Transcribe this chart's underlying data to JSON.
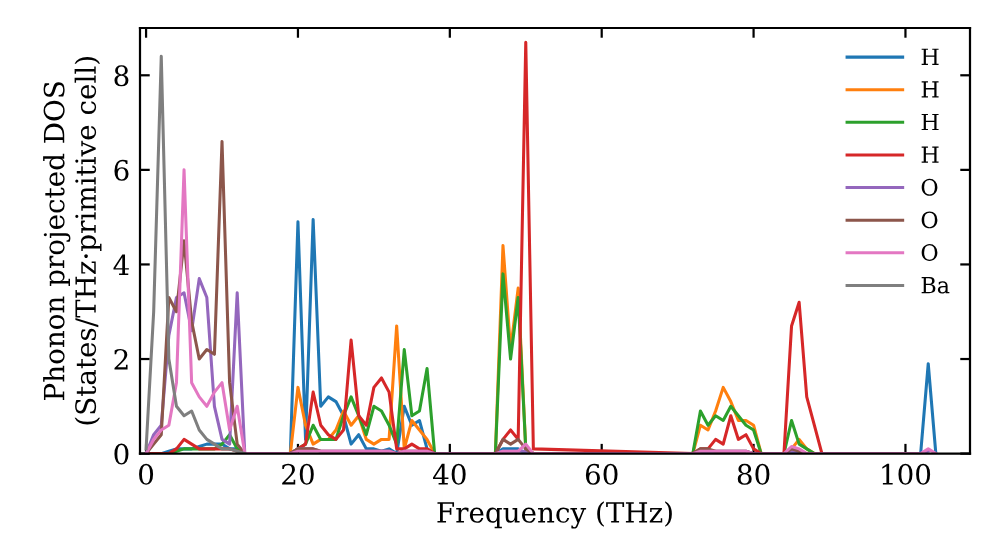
{
  "chart_data": {
    "type": "line",
    "xlabel": "Frequency (THz)",
    "ylabel": "Phonon projected DOS\n(States/THz·primitive cell)",
    "xlim": [
      -0.8,
      108.5
    ],
    "ylim": [
      0,
      9
    ],
    "xticks": [
      0,
      20,
      40,
      60,
      80,
      100
    ],
    "yticks": [
      0,
      2,
      4,
      6,
      8
    ],
    "grid": false,
    "legend": "top right",
    "marker": "none",
    "line_style": "solid",
    "x": [
      0,
      1,
      2,
      3,
      4,
      5,
      6,
      7,
      8,
      9,
      10,
      11,
      12,
      13,
      14,
      19,
      20,
      21,
      22,
      23,
      24,
      25,
      26,
      27,
      28,
      29,
      30,
      31,
      32,
      33,
      34,
      35,
      36,
      37,
      38,
      46,
      47,
      48,
      49,
      50,
      51,
      72,
      73,
      74,
      75,
      76,
      77,
      78,
      79,
      80,
      81,
      84,
      85,
      86,
      87,
      88,
      89,
      102,
      103,
      104
    ],
    "series": [
      {
        "name": "H",
        "color": "#1f77b4",
        "values": [
          0,
          0,
          0,
          0.05,
          0.1,
          0.1,
          0.1,
          0.15,
          0.2,
          0.2,
          0.2,
          0.1,
          0.1,
          0,
          0,
          0,
          4.9,
          0.3,
          4.95,
          1.0,
          1.2,
          1.1,
          0.8,
          0.2,
          0.4,
          0.1,
          0.1,
          0.05,
          0.1,
          0,
          1.0,
          0.6,
          0.7,
          0.1,
          0,
          0,
          0.1,
          0.1,
          0.1,
          0,
          0,
          0,
          0,
          0,
          0,
          0,
          0,
          0,
          0,
          0,
          0,
          0,
          0,
          0,
          0,
          0,
          0,
          0,
          1.9,
          0
        ]
      },
      {
        "name": "H",
        "color": "#ff7f0e",
        "values": [
          null,
          null,
          null,
          null,
          null,
          null,
          null,
          null,
          null,
          null,
          null,
          null,
          null,
          null,
          0,
          0,
          1.4,
          0.6,
          0.2,
          0.3,
          0.3,
          0.5,
          0.9,
          0.6,
          0.8,
          0.3,
          0.2,
          0.3,
          0.3,
          2.7,
          0.1,
          0.7,
          0.5,
          0.3,
          0,
          0,
          4.4,
          2.2,
          3.5,
          0.1,
          0,
          0,
          0.6,
          0.5,
          0.9,
          1.4,
          1.1,
          0.7,
          0.7,
          0.6,
          0,
          0,
          0.1,
          0.3,
          0.1,
          0,
          null,
          null,
          null,
          null
        ]
      },
      {
        "name": "H",
        "color": "#2ca02c",
        "values": [
          null,
          null,
          0,
          0,
          0.05,
          0.1,
          0.1,
          0.1,
          0.1,
          0.1,
          0.2,
          0.4,
          0.1,
          0,
          0,
          0,
          0.1,
          0.2,
          0.6,
          0.3,
          0.3,
          0.3,
          0.8,
          1.2,
          0.8,
          0.4,
          1.0,
          0.9,
          0.6,
          0.2,
          2.2,
          0.8,
          0.9,
          1.8,
          0,
          0,
          3.8,
          2.0,
          3.3,
          0.1,
          0,
          0,
          0.9,
          0.6,
          0.8,
          0.7,
          1.0,
          0.8,
          0.6,
          0.5,
          0,
          0,
          0.7,
          0.2,
          0.1,
          0,
          0,
          null,
          null,
          null
        ]
      },
      {
        "name": "H",
        "color": "#d62728",
        "values": [
          0,
          null,
          0,
          0,
          0.1,
          0.3,
          0.2,
          0.1,
          0.1,
          0.1,
          0.1,
          0.1,
          0.05,
          0,
          0,
          0,
          0.1,
          0.2,
          1.3,
          0.6,
          0.4,
          0.3,
          0.5,
          2.4,
          0.8,
          0.6,
          1.4,
          1.6,
          1.3,
          0.1,
          0.1,
          0.2,
          0.1,
          0.1,
          0,
          0,
          0.3,
          0.5,
          0.3,
          8.7,
          0.1,
          0,
          0.1,
          0.1,
          0.3,
          0.2,
          0.8,
          0.3,
          0.4,
          0.1,
          0,
          0,
          2.7,
          3.2,
          1.2,
          0.6,
          0,
          null,
          null,
          null
        ]
      },
      {
        "name": "O",
        "color": "#9467bd",
        "values": [
          0,
          0.4,
          0.6,
          2.5,
          3.3,
          3.4,
          2.6,
          3.7,
          3.3,
          1.0,
          0.3,
          0.2,
          3.4,
          0,
          0,
          0,
          0.1,
          0.1,
          0.1,
          0.05,
          0.05,
          0.05,
          0.05,
          0.05,
          0.05,
          0.05,
          0.05,
          0.05,
          0.05,
          0,
          0.05,
          0.05,
          0.05,
          0.05,
          0,
          0,
          0.05,
          0.05,
          0.05,
          0.05,
          0,
          0,
          0.05,
          0.05,
          0.05,
          0.05,
          0.05,
          0.05,
          0.05,
          0,
          0,
          0,
          0.05,
          0.05,
          0,
          0,
          0,
          0,
          0.05,
          null
        ]
      },
      {
        "name": "O",
        "color": "#8c564b",
        "values": [
          0,
          0.2,
          0.4,
          3.3,
          3.0,
          4.5,
          2.8,
          2.0,
          2.2,
          2.1,
          6.6,
          1.5,
          0.2,
          0,
          0,
          0,
          0.1,
          0.1,
          0.1,
          0.05,
          0.05,
          0.05,
          0.05,
          0.05,
          0.05,
          0.05,
          0.05,
          0.05,
          0.05,
          0,
          0.05,
          0.05,
          0.05,
          0.05,
          0,
          0,
          0.3,
          0.2,
          0.3,
          0.1,
          0,
          0,
          0.1,
          0.1,
          0.05,
          0.05,
          0.05,
          0.05,
          0.05,
          0,
          0,
          0,
          0.1,
          0.05,
          0,
          0,
          0,
          null,
          null,
          null
        ]
      },
      {
        "name": "O",
        "color": "#e377c2",
        "values": [
          0,
          0.3,
          0.5,
          0.6,
          1.5,
          6.0,
          1.5,
          1.2,
          1.0,
          1.3,
          1.5,
          0.5,
          1.0,
          0,
          0,
          0,
          0.05,
          0.05,
          0.05,
          0.05,
          0.05,
          0.05,
          0.05,
          0.05,
          0.05,
          0.05,
          0.05,
          0.05,
          0.05,
          0,
          0.05,
          0.05,
          0.05,
          0.05,
          0,
          0,
          0.05,
          0.05,
          0.05,
          0.2,
          0,
          0,
          0.05,
          0.05,
          0.05,
          0.05,
          0.05,
          0.05,
          0.05,
          0,
          null,
          0,
          0.15,
          0.1,
          0,
          0,
          0,
          0,
          0.1,
          0
        ]
      },
      {
        "name": "Ba",
        "color": "#7f7f7f",
        "values": [
          0.1,
          3.0,
          8.4,
          2.0,
          1.0,
          0.8,
          0.9,
          0.5,
          0.3,
          0.2,
          0.1,
          0.1,
          0.05,
          0,
          null,
          null,
          null,
          null,
          null,
          null,
          null,
          null,
          null,
          null,
          null,
          null,
          null,
          null,
          null,
          null,
          null,
          null,
          null,
          null,
          null,
          null,
          null,
          null,
          null,
          null,
          null,
          null,
          null,
          null,
          null,
          null,
          null,
          null,
          null,
          null,
          null,
          null,
          null,
          null,
          null,
          null,
          null,
          null,
          null,
          null
        ]
      }
    ]
  }
}
